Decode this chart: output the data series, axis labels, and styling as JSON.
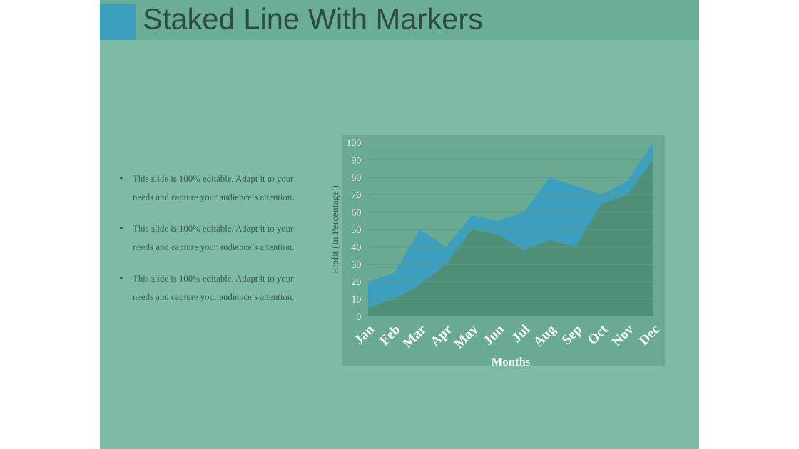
{
  "chart_data": {
    "type": "area",
    "title": "Staked Line With Markers",
    "xlabel": "Months",
    "ylabel": "Profit (In Percentage )",
    "categories": [
      "Jan",
      "Feb",
      "Mar",
      "Apr",
      "May",
      "Jun",
      "Jul",
      "Aug",
      "Sep",
      "Oct",
      "Nov",
      "Dec"
    ],
    "series": [
      {
        "color": "#3d9fbf",
        "values": [
          20,
          25,
          50,
          40,
          58,
          55,
          60,
          80,
          75,
          70,
          78,
          100
        ]
      },
      {
        "color": "#4f8f77",
        "values": [
          5,
          10,
          18,
          30,
          50,
          47,
          38,
          44,
          40,
          65,
          70,
          90
        ]
      }
    ],
    "ylim": [
      0,
      100
    ],
    "yticks": [
      0,
      10,
      20,
      30,
      40,
      50,
      60,
      70,
      80,
      90,
      100
    ],
    "grid": "y",
    "annotations": [
      "This slide is 100% editable. Adapt it to your\nneeds and capture your audience’s attention.",
      "This slide is 100% editable. Adapt it to your\nneeds and capture your audience’s attention.",
      "This slide is 100% editable. Adapt it to your\nneeds and capture your audience’s attention."
    ]
  }
}
